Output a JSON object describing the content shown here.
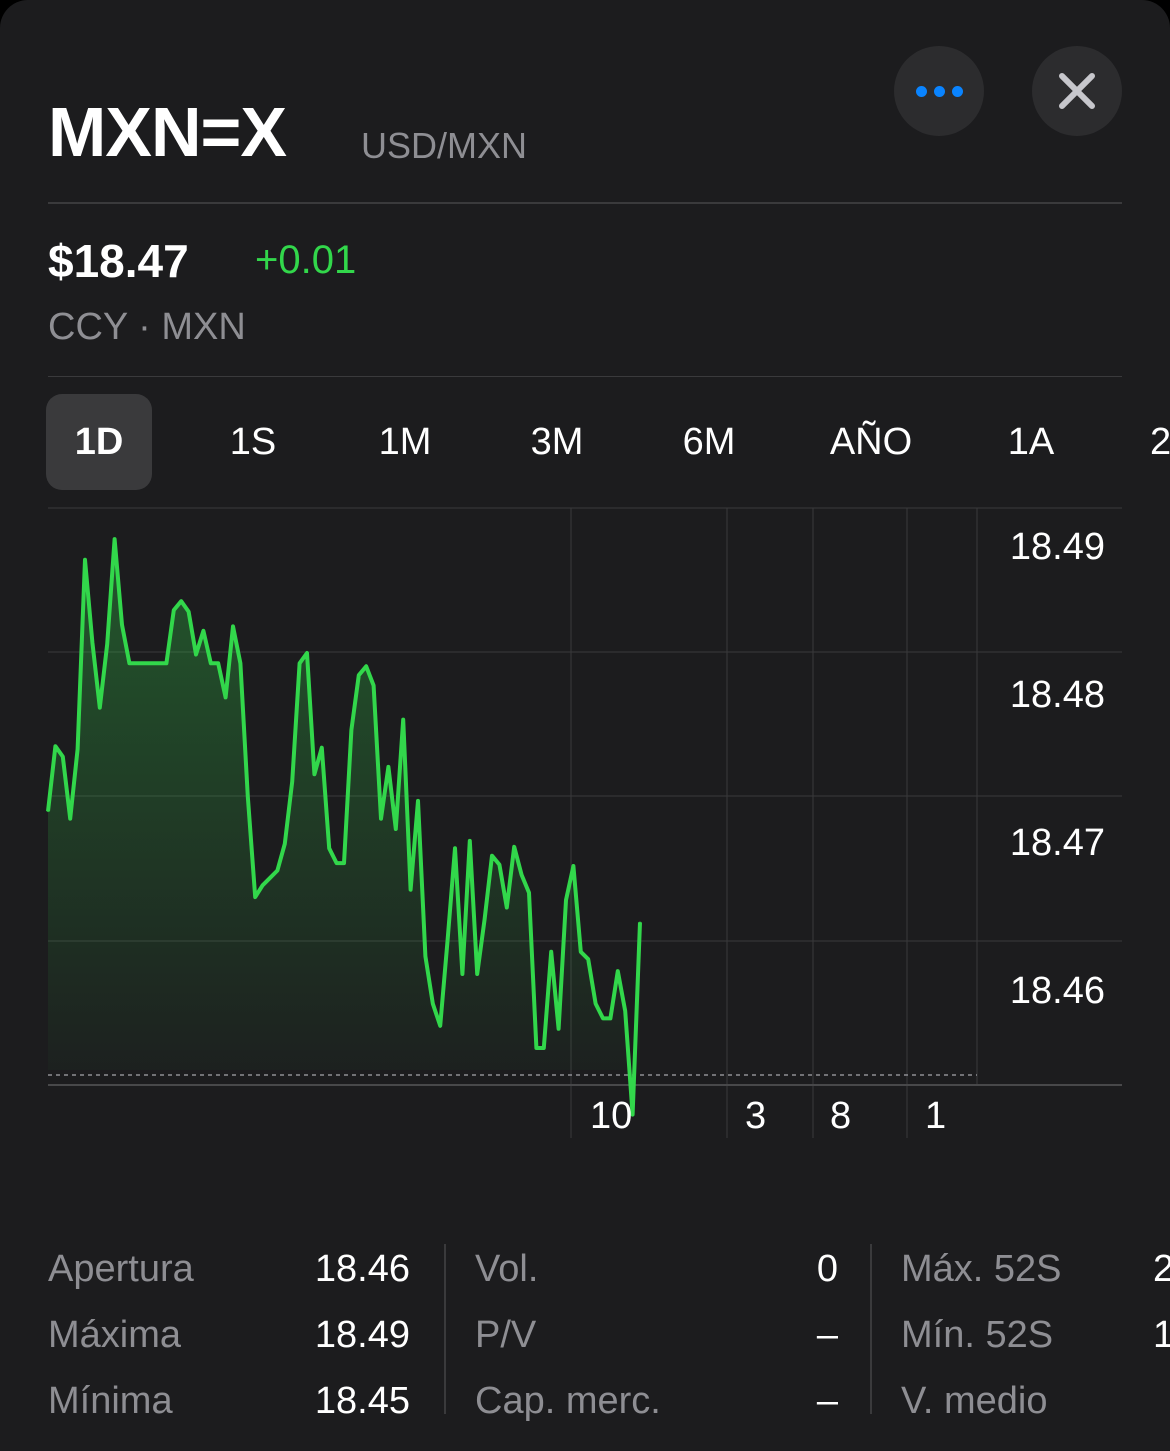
{
  "header": {
    "symbol": "MXN=X",
    "subtitle": "USD/MXN",
    "more_icon": "ellipsis-icon",
    "close_icon": "close-icon"
  },
  "quote": {
    "price": "$18.47",
    "change": "+0.01",
    "exchange": "CCY · MXN"
  },
  "ranges": [
    {
      "label": "1D",
      "active": true
    },
    {
      "label": "1S"
    },
    {
      "label": "1M"
    },
    {
      "label": "3M"
    },
    {
      "label": "6M"
    },
    {
      "label": "AÑO"
    },
    {
      "label": "1A"
    },
    {
      "label": "2"
    }
  ],
  "colors": {
    "background": "#1c1c1e",
    "accent_green": "#32d74b",
    "accent_blue": "#0a84ff",
    "secondary_text": "#8e8e93"
  },
  "chart_data": {
    "type": "area",
    "y_tick_labels": [
      "18.49",
      "18.48",
      "18.47",
      "18.46"
    ],
    "ylim": [
      18.4535,
      18.4925
    ],
    "x_tick_labels": [
      "10",
      "3",
      "8",
      "1"
    ],
    "grid": true,
    "previous_close_line": true,
    "series": [
      {
        "values": [
          18.472,
          18.4764,
          18.4757,
          18.4715,
          18.4762,
          18.489,
          18.4834,
          18.479,
          18.4833,
          18.4904,
          18.4846,
          18.482,
          18.482,
          18.482,
          18.482,
          18.482,
          18.482,
          18.4856,
          18.4862,
          18.4855,
          18.4826,
          18.4842,
          18.482,
          18.482,
          18.4797,
          18.4845,
          18.482,
          18.473,
          18.4662,
          18.467,
          18.4675,
          18.468,
          18.4698,
          18.474,
          18.482,
          18.4827,
          18.4745,
          18.4763,
          18.4695,
          18.4685,
          18.4685,
          18.4775,
          18.4812,
          18.4818,
          18.4805,
          18.4715,
          18.475,
          18.4708,
          18.4782,
          18.4667,
          18.4727,
          18.4622,
          18.459,
          18.4575,
          18.4633,
          18.4695,
          18.461,
          18.47,
          18.461,
          18.4647,
          18.469,
          18.4684,
          18.4655,
          18.4696,
          18.4677,
          18.4665,
          18.456,
          18.456,
          18.4625,
          18.4573,
          18.466,
          18.4683,
          18.4625,
          18.462,
          18.459,
          18.458,
          18.458,
          18.4612,
          18.4585,
          18.4515,
          18.4645
        ]
      }
    ]
  },
  "stats": {
    "col1": [
      {
        "label": "Apertura",
        "value": "18.46"
      },
      {
        "label": "Máxima",
        "value": "18.49"
      },
      {
        "label": "Mínima",
        "value": "18.45"
      }
    ],
    "col2": [
      {
        "label": "Vol.",
        "value": "0"
      },
      {
        "label": "P/V",
        "value": "–"
      },
      {
        "label": "Cap. merc.",
        "value": "–"
      }
    ],
    "col3": [
      {
        "label": "Máx. 52S",
        "value": "2"
      },
      {
        "label": "Mín. 52S",
        "value": "1"
      },
      {
        "label": "V. medio",
        "value": ""
      }
    ]
  }
}
